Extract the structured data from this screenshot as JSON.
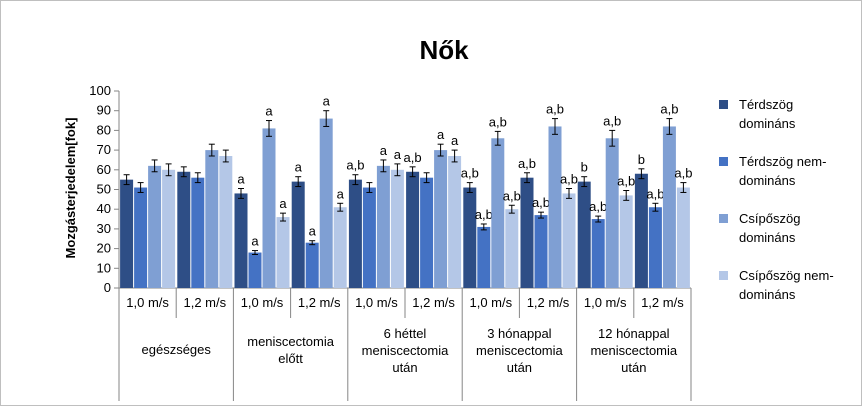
{
  "chart_data": {
    "type": "bar",
    "title": "Nők",
    "ylabel": "Mozgásterjedelem[fok]",
    "xlabel": "",
    "ylim": [
      0,
      100
    ],
    "yticks": [
      "0",
      "10",
      "20",
      "30",
      "40",
      "50",
      "60",
      "70",
      "80",
      "90",
      "100"
    ],
    "grid": false,
    "legend_position": "right",
    "categories": [
      "1,0 m/s",
      "1,2 m/s",
      "1,0 m/s",
      "1,2 m/s",
      "1,0 m/s",
      "1,2 m/s",
      "1,0 m/s",
      "1,2 m/s",
      "1,0 m/s",
      "1,2 m/s"
    ],
    "groups": [
      {
        "label": [
          "egészséges"
        ]
      },
      {
        "label": [
          "meniscectomia",
          "előtt"
        ]
      },
      {
        "label": [
          "6 héttel",
          "meniscectomia",
          "után"
        ]
      },
      {
        "label": [
          "3 hónappal",
          "meniscectomia",
          "után"
        ]
      },
      {
        "label": [
          "12 hónappal",
          "meniscectomia",
          "után"
        ]
      }
    ],
    "series": [
      {
        "name": "Térdszög domináns",
        "legend_lines": [
          "Térdszög",
          "domináns"
        ],
        "color": "#2E4E86",
        "values": [
          55,
          59,
          48,
          54,
          55,
          59,
          51,
          56,
          54,
          58
        ],
        "errors": [
          2.5,
          2.5,
          2.5,
          2.5,
          2.5,
          2.5,
          2.5,
          2.5,
          2.5,
          2.5
        ],
        "labels": [
          "",
          "",
          "a",
          "a",
          "a,b",
          "a,b",
          "a,b",
          "a,b",
          "b",
          "b"
        ]
      },
      {
        "name": "Térdszög nem-domináns",
        "legend_lines": [
          "Térdszög nem-",
          "domináns"
        ],
        "color": "#4472C4",
        "values": [
          51,
          56,
          18,
          23,
          51,
          56,
          31,
          37,
          35,
          41
        ],
        "errors": [
          2.5,
          2.5,
          1,
          1,
          2.5,
          2.5,
          1.5,
          1.5,
          1.5,
          2
        ],
        "labels": [
          "",
          "",
          "a",
          "a",
          "",
          "",
          "a,b",
          "a,b",
          "a,b",
          "a,b"
        ]
      },
      {
        "name": "Csípőszög domináns",
        "legend_lines": [
          "Csípőszög",
          "domináns"
        ],
        "color": "#7F9FD3",
        "values": [
          62,
          70,
          81,
          86,
          62,
          70,
          76,
          82,
          76,
          82
        ],
        "errors": [
          3,
          3,
          4,
          4,
          3,
          3,
          3.5,
          4,
          4,
          4
        ],
        "labels": [
          "",
          "",
          "a",
          "a",
          "a",
          "a",
          "a,b",
          "a,b",
          "a,b",
          "a,b"
        ]
      },
      {
        "name": "Csípőszög nem-domináns",
        "legend_lines": [
          "Csípőszög nem-",
          "domináns"
        ],
        "color": "#B4C7E7",
        "values": [
          60,
          67,
          36,
          41,
          60,
          67,
          40,
          48,
          47,
          51
        ],
        "errors": [
          3,
          3,
          2,
          2,
          3,
          3,
          2,
          2.5,
          2.5,
          2.5
        ],
        "labels": [
          "",
          "",
          "a",
          "a",
          "a",
          "a",
          "a,b",
          "a,b",
          "a,b",
          "a,b"
        ]
      }
    ]
  }
}
